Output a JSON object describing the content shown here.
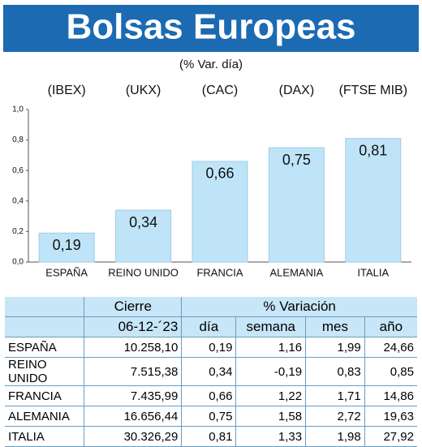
{
  "chart_data": {
    "type": "bar",
    "title": "Bolsas Europeas",
    "subtitle": "(% Var. día)",
    "index_labels": [
      "(IBEX)",
      "(UKX)",
      "(CAC)",
      "(DAX)",
      "(FTSE MIB)"
    ],
    "categories": [
      "ESPAÑA",
      "REINO UNIDO",
      "FRANCIA",
      "ALEMANIA",
      "ITALIA"
    ],
    "values": [
      0.19,
      0.34,
      0.66,
      0.75,
      0.81
    ],
    "value_labels": [
      "0,19",
      "0,34",
      "0,66",
      "0,75",
      "0,81"
    ],
    "color": "#bfe4f8",
    "ylim": [
      0,
      1
    ],
    "yticks": [
      {
        "value": 0,
        "label": "0,0"
      },
      {
        "value": 0.2,
        "label": "0,2"
      },
      {
        "value": 0.4,
        "label": "0,4"
      },
      {
        "value": 0.6,
        "label": "0,6"
      },
      {
        "value": 0.8,
        "label": "0,8"
      },
      {
        "value": 1,
        "label": "1,0"
      }
    ]
  },
  "table": {
    "header": [
      [
        "Cierre",
        "% Variación"
      ],
      [
        "06-12-´23",
        "día",
        "semana",
        "mes",
        "año"
      ]
    ],
    "rows": [
      [
        "ESPAÑA",
        "10.258,10",
        "0,19",
        "1,16",
        "1,99",
        "24,66"
      ],
      [
        "REINO UNIDO",
        "7.515,38",
        "0,34",
        "-0,19",
        "0,83",
        "0,85"
      ],
      [
        "FRANCIA",
        "7.435,99",
        "0,66",
        "1,22",
        "1,71",
        "14,86"
      ],
      [
        "ALEMANIA",
        "16.656,44",
        "0,75",
        "1,58",
        "2,72",
        "19,63"
      ],
      [
        "ITALIA",
        "30.326,29",
        "0,81",
        "1,33",
        "1,98",
        "27,92"
      ]
    ]
  }
}
